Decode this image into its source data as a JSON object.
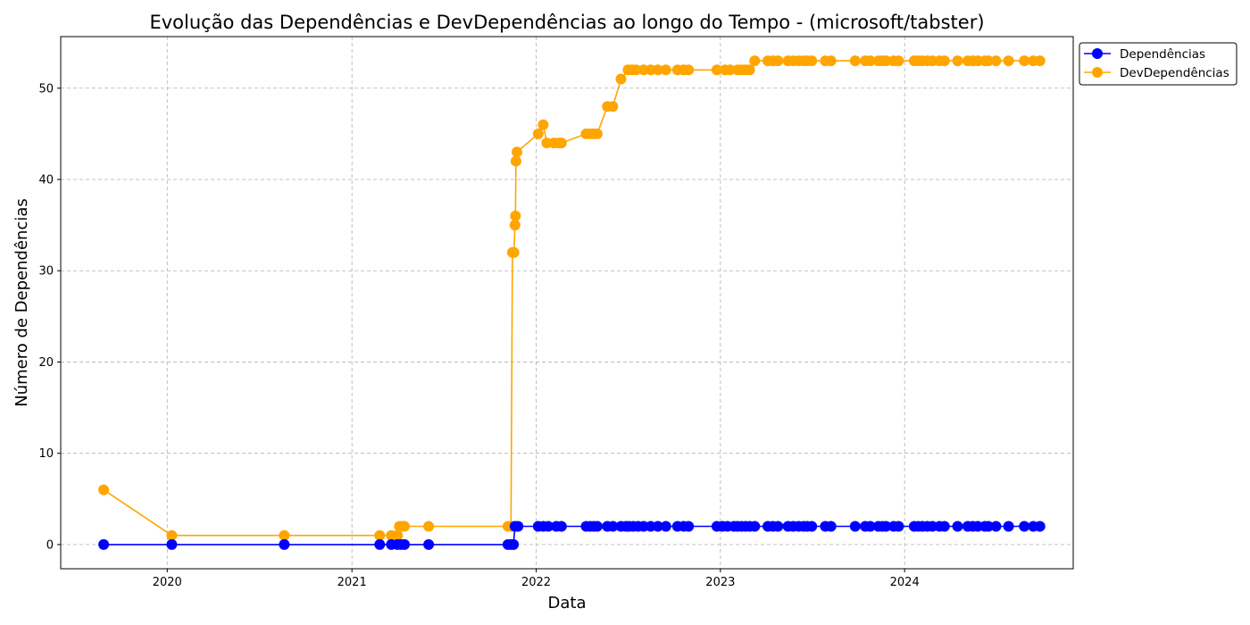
{
  "chart_data": {
    "type": "line",
    "title": "Evolução das Dependências e DevDependências ao longo do Tempo - (microsoft/tabster)",
    "xlabel": "Data",
    "ylabel": "Número de Dependências",
    "xlim": [
      "2019-06-04",
      "2024-11-30"
    ],
    "ylim": [
      -2.65,
      55.65
    ],
    "x_ticks": [
      "2020",
      "2021",
      "2022",
      "2023",
      "2024"
    ],
    "y_ticks": [
      0,
      10,
      20,
      30,
      40,
      50
    ],
    "grid": true,
    "legend_position": "top-right, outside plot",
    "series": [
      {
        "name": "Dependências",
        "color": "#0000ff",
        "points": [
          [
            "2019-08-28",
            0
          ],
          [
            "2020-01-10",
            0
          ],
          [
            "2020-08-20",
            0
          ],
          [
            "2021-02-25",
            0
          ],
          [
            "2021-03-20",
            0
          ],
          [
            "2021-04-01",
            0
          ],
          [
            "2021-04-08",
            0
          ],
          [
            "2021-04-15",
            0
          ],
          [
            "2021-06-02",
            0
          ],
          [
            "2021-11-06",
            0
          ],
          [
            "2021-11-12",
            0
          ],
          [
            "2021-11-17",
            0
          ],
          [
            "2021-11-20",
            2
          ],
          [
            "2021-11-26",
            2
          ],
          [
            "2022-01-05",
            2
          ],
          [
            "2022-01-15",
            2
          ],
          [
            "2022-01-25",
            2
          ],
          [
            "2022-02-10",
            2
          ],
          [
            "2022-02-20",
            2
          ],
          [
            "2022-04-10",
            2
          ],
          [
            "2022-04-18",
            2
          ],
          [
            "2022-04-25",
            2
          ],
          [
            "2022-05-02",
            2
          ],
          [
            "2022-05-22",
            2
          ],
          [
            "2022-06-02",
            2
          ],
          [
            "2022-06-18",
            2
          ],
          [
            "2022-06-28",
            2
          ],
          [
            "2022-07-04",
            2
          ],
          [
            "2022-07-12",
            2
          ],
          [
            "2022-07-22",
            2
          ],
          [
            "2022-08-02",
            2
          ],
          [
            "2022-08-16",
            2
          ],
          [
            "2022-08-30",
            2
          ],
          [
            "2022-09-15",
            2
          ],
          [
            "2022-10-08",
            2
          ],
          [
            "2022-10-20",
            2
          ],
          [
            "2022-10-30",
            2
          ],
          [
            "2022-12-25",
            2
          ],
          [
            "2023-01-05",
            2
          ],
          [
            "2023-01-15",
            2
          ],
          [
            "2023-01-28",
            2
          ],
          [
            "2023-02-04",
            2
          ],
          [
            "2023-02-12",
            2
          ],
          [
            "2023-02-20",
            2
          ],
          [
            "2023-02-28",
            2
          ],
          [
            "2023-03-10",
            2
          ],
          [
            "2023-04-05",
            2
          ],
          [
            "2023-04-15",
            2
          ],
          [
            "2023-04-25",
            2
          ],
          [
            "2023-05-15",
            2
          ],
          [
            "2023-05-25",
            2
          ],
          [
            "2023-06-05",
            2
          ],
          [
            "2023-06-15",
            2
          ],
          [
            "2023-06-22",
            2
          ],
          [
            "2023-07-01",
            2
          ],
          [
            "2023-07-28",
            2
          ],
          [
            "2023-08-08",
            2
          ],
          [
            "2023-09-25",
            2
          ],
          [
            "2023-10-15",
            2
          ],
          [
            "2023-10-25",
            2
          ],
          [
            "2023-11-10",
            2
          ],
          [
            "2023-11-18",
            2
          ],
          [
            "2023-11-25",
            2
          ],
          [
            "2023-12-10",
            2
          ],
          [
            "2023-12-20",
            2
          ],
          [
            "2024-01-20",
            2
          ],
          [
            "2024-01-28",
            2
          ],
          [
            "2024-02-05",
            2
          ],
          [
            "2024-02-15",
            2
          ],
          [
            "2024-02-25",
            2
          ],
          [
            "2024-03-10",
            2
          ],
          [
            "2024-03-20",
            2
          ],
          [
            "2024-04-15",
            2
          ],
          [
            "2024-05-05",
            2
          ],
          [
            "2024-05-15",
            2
          ],
          [
            "2024-05-25",
            2
          ],
          [
            "2024-06-08",
            2
          ],
          [
            "2024-06-15",
            2
          ],
          [
            "2024-06-30",
            2
          ],
          [
            "2024-07-25",
            2
          ],
          [
            "2024-08-25",
            2
          ],
          [
            "2024-09-12",
            2
          ],
          [
            "2024-09-25",
            2
          ]
        ]
      },
      {
        "name": "DevDependências",
        "color": "#ffa500",
        "points": [
          [
            "2019-08-28",
            6
          ],
          [
            "2020-01-10",
            1
          ],
          [
            "2020-08-20",
            1
          ],
          [
            "2021-02-25",
            1
          ],
          [
            "2021-03-20",
            1
          ],
          [
            "2021-04-01",
            1
          ],
          [
            "2021-04-05",
            2
          ],
          [
            "2021-04-10",
            2
          ],
          [
            "2021-04-15",
            2
          ],
          [
            "2021-06-02",
            2
          ],
          [
            "2021-11-06",
            2
          ],
          [
            "2021-11-12",
            2
          ],
          [
            "2021-11-15",
            32
          ],
          [
            "2021-11-18",
            32
          ],
          [
            "2021-11-20",
            35
          ],
          [
            "2021-11-21",
            36
          ],
          [
            "2021-11-22",
            42
          ],
          [
            "2021-11-24",
            43
          ],
          [
            "2022-01-05",
            45
          ],
          [
            "2022-01-15",
            46
          ],
          [
            "2022-01-22",
            44
          ],
          [
            "2022-02-05",
            44
          ],
          [
            "2022-02-15",
            44
          ],
          [
            "2022-02-20",
            44
          ],
          [
            "2022-04-10",
            45
          ],
          [
            "2022-04-18",
            45
          ],
          [
            "2022-04-25",
            45
          ],
          [
            "2022-05-02",
            45
          ],
          [
            "2022-05-22",
            48
          ],
          [
            "2022-06-02",
            48
          ],
          [
            "2022-06-18",
            51
          ],
          [
            "2022-07-02",
            52
          ],
          [
            "2022-07-10",
            52
          ],
          [
            "2022-07-18",
            52
          ],
          [
            "2022-08-02",
            52
          ],
          [
            "2022-08-16",
            52
          ],
          [
            "2022-08-30",
            52
          ],
          [
            "2022-09-15",
            52
          ],
          [
            "2022-10-08",
            52
          ],
          [
            "2022-10-20",
            52
          ],
          [
            "2022-10-30",
            52
          ],
          [
            "2022-12-25",
            52
          ],
          [
            "2023-01-10",
            52
          ],
          [
            "2023-01-20",
            52
          ],
          [
            "2023-02-04",
            52
          ],
          [
            "2023-02-12",
            52
          ],
          [
            "2023-02-20",
            52
          ],
          [
            "2023-02-28",
            52
          ],
          [
            "2023-03-10",
            53
          ],
          [
            "2023-04-05",
            53
          ],
          [
            "2023-04-15",
            53
          ],
          [
            "2023-04-25",
            53
          ],
          [
            "2023-05-15",
            53
          ],
          [
            "2023-05-25",
            53
          ],
          [
            "2023-06-05",
            53
          ],
          [
            "2023-06-15",
            53
          ],
          [
            "2023-06-22",
            53
          ],
          [
            "2023-07-01",
            53
          ],
          [
            "2023-07-28",
            53
          ],
          [
            "2023-08-08",
            53
          ],
          [
            "2023-09-25",
            53
          ],
          [
            "2023-10-15",
            53
          ],
          [
            "2023-10-25",
            53
          ],
          [
            "2023-11-10",
            53
          ],
          [
            "2023-11-18",
            53
          ],
          [
            "2023-11-25",
            53
          ],
          [
            "2023-12-10",
            53
          ],
          [
            "2023-12-20",
            53
          ],
          [
            "2024-01-20",
            53
          ],
          [
            "2024-01-28",
            53
          ],
          [
            "2024-02-05",
            53
          ],
          [
            "2024-02-15",
            53
          ],
          [
            "2024-02-25",
            53
          ],
          [
            "2024-03-10",
            53
          ],
          [
            "2024-03-20",
            53
          ],
          [
            "2024-04-15",
            53
          ],
          [
            "2024-05-05",
            53
          ],
          [
            "2024-05-15",
            53
          ],
          [
            "2024-05-25",
            53
          ],
          [
            "2024-06-08",
            53
          ],
          [
            "2024-06-15",
            53
          ],
          [
            "2024-06-30",
            53
          ],
          [
            "2024-07-25",
            53
          ],
          [
            "2024-08-25",
            53
          ],
          [
            "2024-09-12",
            53
          ],
          [
            "2024-09-25",
            53
          ]
        ]
      }
    ]
  }
}
